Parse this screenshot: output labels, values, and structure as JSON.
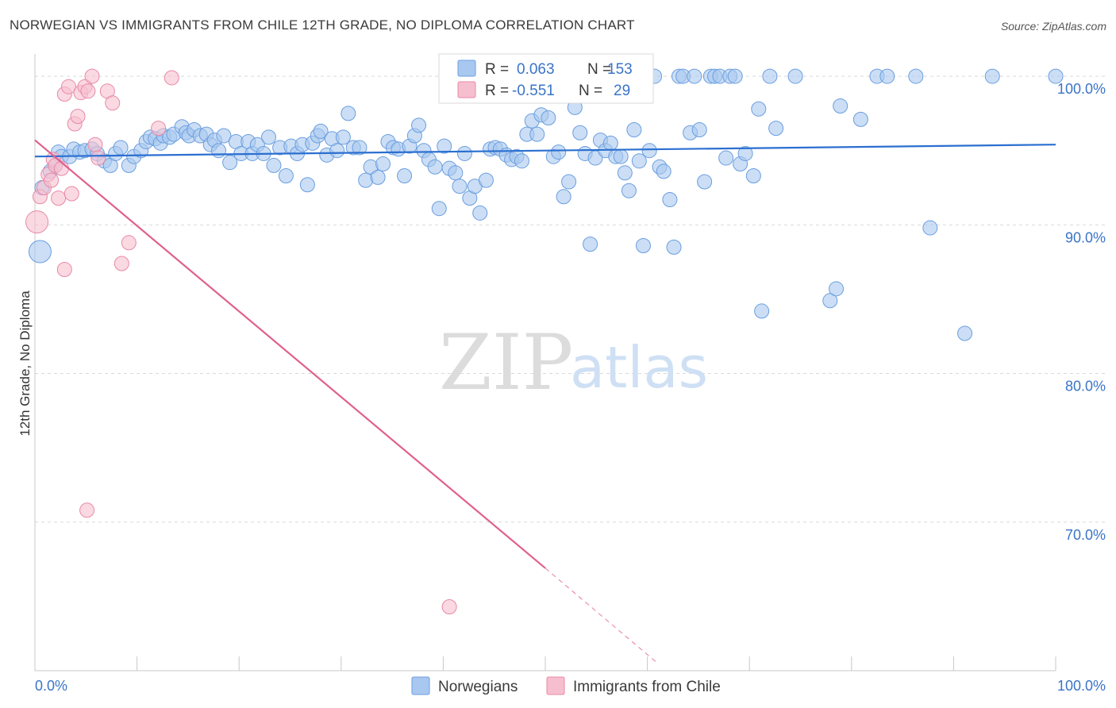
{
  "header": {
    "title": "NORWEGIAN VS IMMIGRANTS FROM CHILE 12TH GRADE, NO DIPLOMA CORRELATION CHART",
    "source": "Source: ZipAtlas.com"
  },
  "watermark": {
    "zip": "ZIP",
    "atlas": "atlas"
  },
  "colors": {
    "blue_fill": "#a9c8ef",
    "blue_stroke": "#6a9ee0",
    "blue_line": "#2b6fd0",
    "pink_fill": "#f6bfd0",
    "pink_stroke": "#e889a6",
    "pink_line": "#e0608c",
    "tick_text": "#3a74c8",
    "grid": "#d9d9d9"
  },
  "legend": {
    "rows": [
      {
        "r_label": "R =",
        "r_value": "0.063",
        "n_label": "N =",
        "n_value": "153"
      },
      {
        "r_label": "R =",
        "r_value": "-0.551",
        "n_label": "N =",
        "n_value": "29"
      }
    ]
  },
  "chart_data": {
    "type": "scatter",
    "title": "NORWEGIAN VS IMMIGRANTS FROM CHILE 12TH GRADE, NO DIPLOMA CORRELATION CHART",
    "xlabel": "",
    "ylabel": "12th Grade, No Diploma",
    "xlim": [
      0,
      100
    ],
    "ylim": [
      60,
      101.5
    ],
    "x_tick_labels": [
      "0.0%",
      "100.0%"
    ],
    "y_ticks": [
      70,
      80,
      90,
      100
    ],
    "y_tick_labels": [
      "70.0%",
      "80.0%",
      "90.0%",
      "100.0%"
    ],
    "grid": true,
    "legend_position": "top-center",
    "series": [
      {
        "name": "Norwegians",
        "color": "#a9c8ef",
        "trend": {
          "x": [
            0,
            100
          ],
          "y": [
            94.6,
            95.4
          ],
          "r": 0.063,
          "n": 153
        },
        "points": [
          [
            0.5,
            88.2,
            14
          ],
          [
            0.7,
            92.5,
            9
          ],
          [
            1.5,
            93.6,
            9
          ],
          [
            2,
            94.0,
            9
          ],
          [
            2.3,
            94.9,
            9
          ],
          [
            2.6,
            94.6,
            9
          ],
          [
            3.4,
            94.6,
            9
          ],
          [
            3.8,
            95.1,
            9
          ],
          [
            4.4,
            94.9,
            9
          ],
          [
            4.9,
            95.0,
            9
          ],
          [
            5.6,
            95.1,
            9
          ],
          [
            6.1,
            94.8,
            9
          ],
          [
            6.8,
            94.3,
            9
          ],
          [
            7.4,
            94.0,
            9
          ],
          [
            7.9,
            94.8,
            9
          ],
          [
            8.4,
            95.2,
            9
          ],
          [
            9.2,
            94.0,
            9
          ],
          [
            9.7,
            94.6,
            9
          ],
          [
            10.4,
            95.0,
            9
          ],
          [
            10.9,
            95.6,
            9
          ],
          [
            11.3,
            95.9,
            9
          ],
          [
            11.8,
            95.8,
            9
          ],
          [
            12.3,
            95.5,
            9
          ],
          [
            12.6,
            96.0,
            9
          ],
          [
            13.2,
            95.9,
            9
          ],
          [
            13.6,
            96.1,
            9
          ],
          [
            14.4,
            96.6,
            9
          ],
          [
            14.8,
            96.2,
            9
          ],
          [
            15.1,
            96.0,
            9
          ],
          [
            15.6,
            96.4,
            9
          ],
          [
            16.2,
            96.0,
            9
          ],
          [
            16.8,
            96.1,
            9
          ],
          [
            17.2,
            95.4,
            9
          ],
          [
            17.6,
            95.7,
            9
          ],
          [
            18.0,
            95.0,
            9
          ],
          [
            18.5,
            96.0,
            9
          ],
          [
            19.1,
            94.2,
            9
          ],
          [
            19.7,
            95.6,
            9
          ],
          [
            20.2,
            94.8,
            9
          ],
          [
            20.9,
            95.6,
            9
          ],
          [
            21.3,
            94.8,
            9
          ],
          [
            21.8,
            95.4,
            9
          ],
          [
            22.4,
            94.8,
            9
          ],
          [
            22.9,
            95.9,
            9
          ],
          [
            23.4,
            94.0,
            9
          ],
          [
            24.0,
            95.2,
            9
          ],
          [
            24.6,
            93.3,
            9
          ],
          [
            25.1,
            95.3,
            9
          ],
          [
            25.7,
            94.8,
            9
          ],
          [
            26.2,
            95.4,
            9
          ],
          [
            26.7,
            92.7,
            9
          ],
          [
            27.2,
            95.5,
            9
          ],
          [
            27.7,
            96.0,
            9
          ],
          [
            28.0,
            96.3,
            9
          ],
          [
            28.6,
            94.7,
            9
          ],
          [
            29.1,
            95.8,
            9
          ],
          [
            29.6,
            95.0,
            9
          ],
          [
            30.2,
            95.9,
            9
          ],
          [
            30.7,
            97.5,
            9
          ],
          [
            31.2,
            95.2,
            9
          ],
          [
            31.8,
            95.2,
            9
          ],
          [
            32.4,
            93.0,
            9
          ],
          [
            32.9,
            93.9,
            9
          ],
          [
            33.6,
            93.2,
            9
          ],
          [
            34.1,
            94.1,
            9
          ],
          [
            34.6,
            95.6,
            9
          ],
          [
            35.1,
            95.2,
            9
          ],
          [
            35.6,
            95.1,
            9
          ],
          [
            36.2,
            93.3,
            9
          ],
          [
            36.7,
            95.3,
            9
          ],
          [
            37.2,
            96.0,
            9
          ],
          [
            37.6,
            96.7,
            9
          ],
          [
            38.1,
            95.0,
            9
          ],
          [
            38.6,
            94.4,
            9
          ],
          [
            39.2,
            93.9,
            9
          ],
          [
            39.6,
            91.1,
            9
          ],
          [
            40.1,
            95.3,
            9
          ],
          [
            40.6,
            93.8,
            9
          ],
          [
            41.2,
            93.5,
            9
          ],
          [
            41.6,
            92.6,
            9
          ],
          [
            42.1,
            94.8,
            9
          ],
          [
            42.6,
            91.8,
            9
          ],
          [
            43.1,
            92.6,
            9
          ],
          [
            43.6,
            90.8,
            9
          ],
          [
            44.2,
            93.0,
            9
          ],
          [
            44.6,
            95.1,
            9
          ],
          [
            45.1,
            95.2,
            9
          ],
          [
            45.6,
            95.1,
            9
          ],
          [
            46.2,
            94.7,
            9
          ],
          [
            46.7,
            94.4,
            9
          ],
          [
            47.2,
            94.6,
            9
          ],
          [
            47.7,
            94.3,
            9
          ],
          [
            48.2,
            96.1,
            9
          ],
          [
            48.7,
            97.0,
            9
          ],
          [
            49.2,
            96.1,
            9
          ],
          [
            49.6,
            97.4,
            9
          ],
          [
            50.3,
            97.2,
            9
          ],
          [
            50.8,
            94.6,
            9
          ],
          [
            51.3,
            94.9,
            9
          ],
          [
            51.8,
            91.9,
            9
          ],
          [
            52.3,
            92.9,
            9
          ],
          [
            52.9,
            97.9,
            9
          ],
          [
            53.4,
            96.2,
            9
          ],
          [
            53.9,
            94.8,
            9
          ],
          [
            54.4,
            88.7,
            9
          ],
          [
            54.9,
            94.5,
            9
          ],
          [
            55.4,
            95.7,
            9
          ],
          [
            55.9,
            95.0,
            9
          ],
          [
            56.4,
            95.5,
            9
          ],
          [
            56.9,
            94.6,
            9
          ],
          [
            57.4,
            94.6,
            9
          ],
          [
            57.8,
            93.5,
            9
          ],
          [
            58.2,
            92.3,
            9
          ],
          [
            58.7,
            96.4,
            9
          ],
          [
            59.2,
            94.3,
            9
          ],
          [
            59.6,
            88.6,
            9
          ],
          [
            60.2,
            95.0,
            9
          ],
          [
            60.7,
            100.0,
            9
          ],
          [
            61.2,
            93.9,
            9
          ],
          [
            61.6,
            93.6,
            9
          ],
          [
            62.2,
            91.7,
            9
          ],
          [
            62.6,
            88.5,
            9
          ],
          [
            63.1,
            100.0,
            9
          ],
          [
            63.5,
            100.0,
            9
          ],
          [
            64.2,
            96.2,
            9
          ],
          [
            64.6,
            100.0,
            9
          ],
          [
            65.1,
            96.4,
            9
          ],
          [
            65.6,
            92.9,
            9
          ],
          [
            66.2,
            100.0,
            9
          ],
          [
            66.6,
            100.0,
            9
          ],
          [
            67.1,
            100.0,
            9
          ],
          [
            67.7,
            94.5,
            9
          ],
          [
            68.1,
            100.0,
            9
          ],
          [
            68.6,
            100.0,
            9
          ],
          [
            69.1,
            94.1,
            9
          ],
          [
            69.6,
            94.8,
            9
          ],
          [
            70.4,
            93.3,
            9
          ],
          [
            70.9,
            97.8,
            9
          ],
          [
            71.2,
            84.2,
            9
          ],
          [
            72.0,
            100.0,
            9
          ],
          [
            72.6,
            96.5,
            9
          ],
          [
            74.5,
            100.0,
            9
          ],
          [
            77.9,
            84.9,
            9
          ],
          [
            78.5,
            85.7,
            9
          ],
          [
            78.9,
            98.0,
            9
          ],
          [
            80.9,
            97.1,
            9
          ],
          [
            82.5,
            100.0,
            9
          ],
          [
            83.5,
            100.0,
            9
          ],
          [
            86.3,
            100.0,
            9
          ],
          [
            87.7,
            89.8,
            9
          ],
          [
            91.1,
            82.7,
            9
          ],
          [
            93.8,
            100.0,
            9
          ],
          [
            100,
            100.0,
            9
          ]
        ]
      },
      {
        "name": "Immigrants from Chile",
        "color": "#f6bfd0",
        "trend": {
          "x": [
            0,
            50
          ],
          "y": [
            95.7,
            66.9
          ],
          "dashed_to": [
            61,
            60.5
          ],
          "r": -0.551,
          "n": 29
        },
        "points": [
          [
            0.2,
            90.2,
            14
          ],
          [
            0.5,
            91.9,
            9
          ],
          [
            0.9,
            92.5,
            9
          ],
          [
            1.3,
            93.4,
            9
          ],
          [
            1.6,
            93.0,
            9
          ],
          [
            1.8,
            94.4,
            9
          ],
          [
            2.0,
            94.0,
            9
          ],
          [
            2.3,
            91.8,
            9
          ],
          [
            2.6,
            93.8,
            9
          ],
          [
            2.9,
            98.8,
            9
          ],
          [
            3.3,
            99.3,
            9
          ],
          [
            3.6,
            92.1,
            9
          ],
          [
            3.9,
            96.8,
            9
          ],
          [
            4.2,
            97.3,
            9
          ],
          [
            4.5,
            98.9,
            9
          ],
          [
            4.9,
            99.3,
            9
          ],
          [
            5.2,
            99.0,
            9
          ],
          [
            5.6,
            100.0,
            9
          ],
          [
            5.9,
            95.4,
            9
          ],
          [
            6.2,
            94.5,
            9
          ],
          [
            7.1,
            99.0,
            9
          ],
          [
            7.6,
            98.2,
            9
          ],
          [
            8.5,
            87.4,
            9
          ],
          [
            9.2,
            88.8,
            9
          ],
          [
            12.1,
            96.5,
            9
          ],
          [
            13.4,
            99.9,
            9
          ],
          [
            2.9,
            87.0,
            9
          ],
          [
            5.1,
            70.8,
            9
          ],
          [
            40.6,
            64.3,
            9
          ]
        ]
      }
    ]
  },
  "bottom_legend": {
    "items": [
      "Norwegians",
      "Immigrants from Chile"
    ]
  }
}
